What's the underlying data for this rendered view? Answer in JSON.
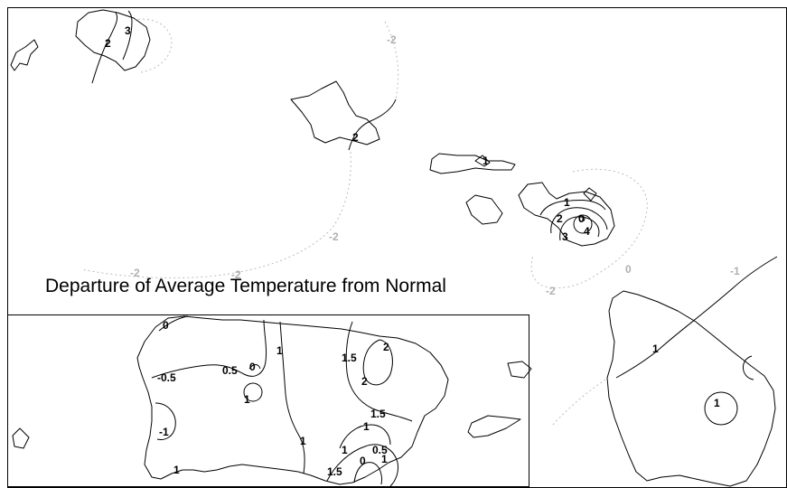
{
  "title": "Departure of Average Temperature from Normal",
  "contour_labels": {
    "hawaii": {
      "kauai_a": "2",
      "kauai_b": "3",
      "niihau_dashed": "-2",
      "oahu": "2",
      "ocean_left_a": "-2",
      "ocean_left_b": "-2",
      "ocean_left_c": "-2",
      "molokai": "1",
      "maui_a": "1",
      "maui_b": "2",
      "maui_c": "3",
      "maui_d": "4",
      "maui_e": "0",
      "maui_neg_a": "0",
      "maui_neg_b": "-2",
      "bigisland_a": "1",
      "bigisland_b": "1",
      "bigisland_neg": "-1"
    },
    "inset": {
      "l_a": "0",
      "l_b": "-0.5",
      "l_c": "0.5",
      "l_d": "0",
      "l_e": "1",
      "l_f": "1",
      "l_g": "-1",
      "l_h": "1",
      "l_i": "1",
      "l_j": "1.5",
      "l_k": "2",
      "l_l": "2",
      "l_m": "1.5",
      "l_n": "1",
      "l_o": "1",
      "l_p": "1.5",
      "l_q": "0",
      "l_r": "0.5",
      "l_s": "1"
    }
  }
}
